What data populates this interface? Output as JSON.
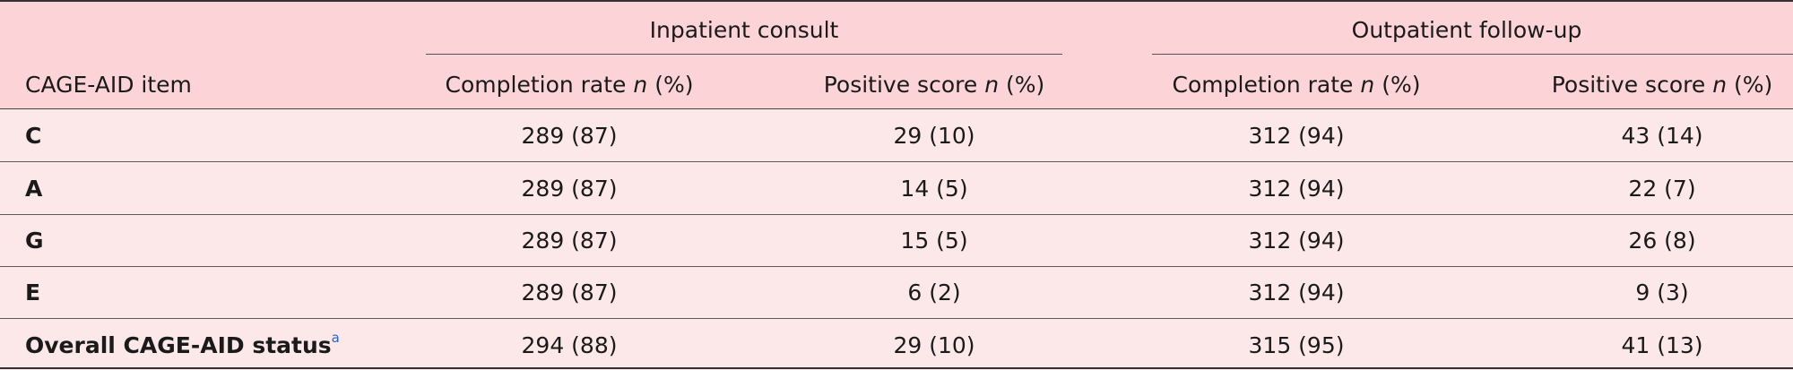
{
  "table": {
    "group_headers": {
      "inpatient": "Inpatient consult",
      "outpatient": "Outpatient follow-up"
    },
    "columns": {
      "item": "CAGE-AID item",
      "in_completion": {
        "label": "Completion rate ",
        "n": "n",
        "pct": " (%)"
      },
      "in_positive": {
        "label": "Positive score ",
        "n": "n",
        "pct": " (%)"
      },
      "out_completion": {
        "label": "Completion rate ",
        "n": "n",
        "pct": " (%)"
      },
      "out_positive": {
        "label": "Positive score ",
        "n": "n",
        "pct": " (%)"
      }
    },
    "rows": [
      {
        "item": "C",
        "in_completion": "289 (87)",
        "in_positive": "29 (10)",
        "out_completion": "312 (94)",
        "out_positive": "43 (14)"
      },
      {
        "item": "A",
        "in_completion": "289 (87)",
        "in_positive": "14 (5)",
        "out_completion": "312 (94)",
        "out_positive": "22 (7)"
      },
      {
        "item": "G",
        "in_completion": "289 (87)",
        "in_positive": "15 (5)",
        "out_completion": "312 (94)",
        "out_positive": "26 (8)"
      },
      {
        "item": "E",
        "in_completion": "289 (87)",
        "in_positive": "6 (2)",
        "out_completion": "312 (94)",
        "out_positive": "9 (3)"
      },
      {
        "item": "Overall CAGE-AID status",
        "footnote": "a",
        "in_completion": "294 (88)",
        "in_positive": "29 (10)",
        "out_completion": "315 (95)",
        "out_positive": "41 (13)"
      }
    ]
  },
  "colors": {
    "header_bg": "#fcd3d6",
    "body_bg": "#fde8e9",
    "footnote_link": "#2a63c9"
  }
}
